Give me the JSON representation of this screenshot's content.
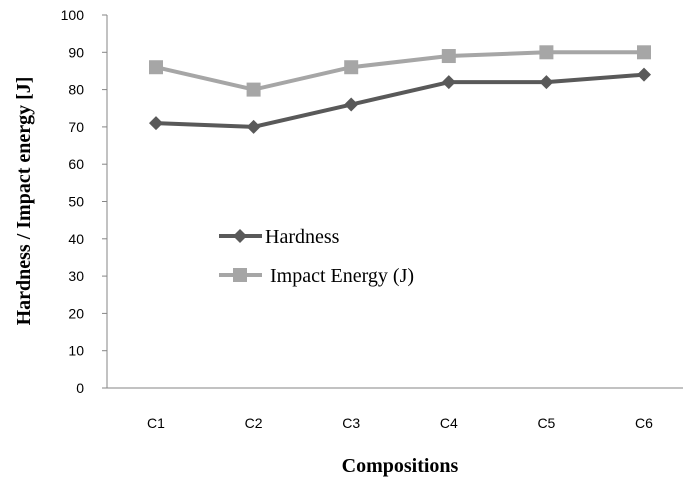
{
  "chart_data": {
    "type": "line",
    "xlabel": "Compositions",
    "ylabel": "Hardness / Impact  energy [J]",
    "categories": [
      "C1",
      "C2",
      "C3",
      "C4",
      "C5",
      "C6"
    ],
    "ylim": [
      0,
      100
    ],
    "yticks": [
      0,
      10,
      20,
      30,
      40,
      50,
      60,
      70,
      80,
      90,
      100
    ],
    "grid": false,
    "legend_position": "inside-left",
    "series": [
      {
        "name": "Hardness",
        "values": [
          71,
          70,
          76,
          82,
          82,
          84
        ],
        "color": "#595959",
        "marker": "diamond"
      },
      {
        "name": "Impact Energy (J)",
        "values": [
          86,
          80,
          86,
          89,
          90,
          90
        ],
        "color": "#a6a6a6",
        "marker": "square"
      }
    ]
  }
}
